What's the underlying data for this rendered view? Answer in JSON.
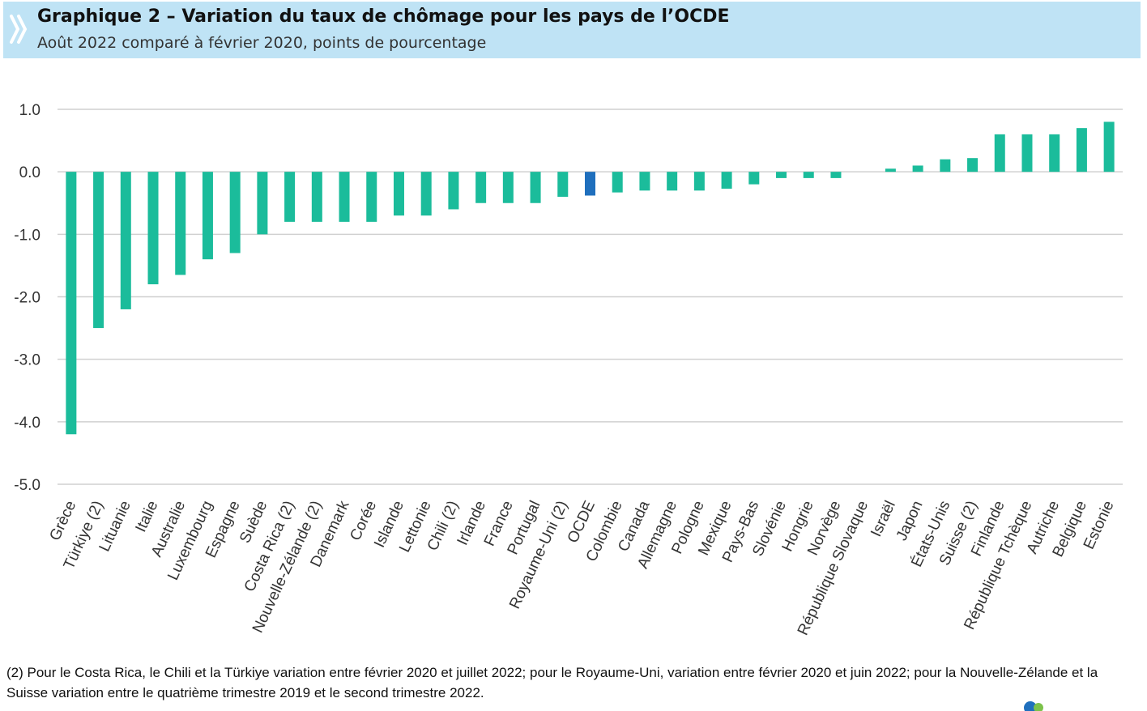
{
  "header": {
    "title": "Graphique 2 – Variation du taux de chômage pour les pays de l’OCDE",
    "subtitle": "Août 2022 comparé à février 2020, points de pourcentage"
  },
  "chart_data": {
    "type": "bar",
    "categories": [
      "Grèce",
      "Türkiye (2)",
      "Lituanie",
      "Italie",
      "Australie",
      "Luxembourg",
      "Espagne",
      "Suède",
      "Costa Rica (2)",
      "Nouvelle-Zélande (2)",
      "Danemark",
      "Corée",
      "Islande",
      "Lettonie",
      "Chili (2)",
      "Irlande",
      "France",
      "Portugal",
      "Royaume-Uni (2)",
      "OCDE",
      "Colombie",
      "Canada",
      "Allemagne",
      "Pologne",
      "Mexique",
      "Pays-Bas",
      "Slovénie",
      "Hongrie",
      "Norvège",
      "République Slovaque",
      "Israël",
      "Japon",
      "États-Unis",
      "Suisse (2)",
      "Finlande",
      "République Tchèque",
      "Autriche",
      "Belgique",
      "Estonie"
    ],
    "values": [
      -4.2,
      -2.5,
      -2.2,
      -1.8,
      -1.65,
      -1.4,
      -1.3,
      -1.0,
      -0.8,
      -0.8,
      -0.8,
      -0.8,
      -0.7,
      -0.7,
      -0.6,
      -0.5,
      -0.5,
      -0.5,
      -0.4,
      -0.38,
      -0.33,
      -0.3,
      -0.3,
      -0.3,
      -0.27,
      -0.2,
      -0.1,
      -0.1,
      -0.1,
      0.0,
      0.05,
      0.1,
      0.2,
      0.22,
      0.6,
      0.6,
      0.6,
      0.7,
      0.8
    ],
    "highlight": "OCDE",
    "colors": {
      "bar": "#1bbc9b",
      "highlight": "#1f6fbd",
      "grid": "#d0d0d0"
    },
    "ylim": [
      -5.0,
      1.0
    ],
    "yticks": [
      1.0,
      0.0,
      -1.0,
      -2.0,
      -3.0,
      -4.0,
      -5.0
    ],
    "ytick_labels": [
      "1.0",
      "0.0",
      "-1.0",
      "-2.0",
      "-3.0",
      "-4.0",
      "-5.0"
    ],
    "grid": true,
    "legend": "none"
  },
  "footnote": "(2) Pour le Costa Rica, le Chili et la Türkiye variation entre février 2020 et juillet 2022; pour le Royaume-Uni, variation entre février 2020 et juin 2022; pour la Nouvelle-Zélande et la Suisse variation entre le quatrième trimestre 2019 et le second trimestre 2022."
}
